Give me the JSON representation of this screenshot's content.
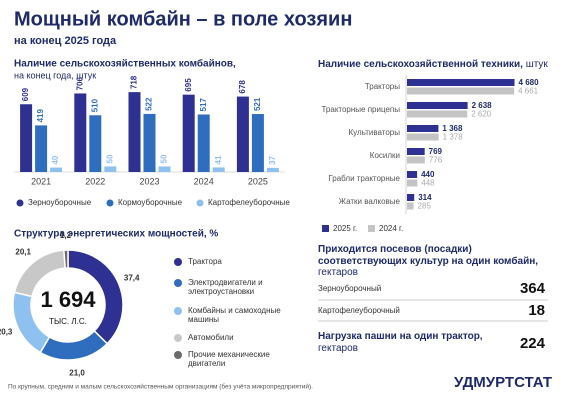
{
  "header": {
    "title": "Мощный комбайн – в поле хозяин",
    "subtitle": "на конец 2025 года"
  },
  "chart_data": [
    {
      "type": "bar",
      "title": "Наличие сельскохозяйственных комбайнов,",
      "subtitle": "на конец года, штук",
      "categories": [
        "2021",
        "2022",
        "2023",
        "2024",
        "2025"
      ],
      "series": [
        {
          "name": "Зерноуборочные",
          "color": "#2e3192",
          "values": [
            609,
            706,
            718,
            695,
            678
          ]
        },
        {
          "name": "Кормоуборочные",
          "color": "#2f6dbf",
          "values": [
            419,
            510,
            522,
            517,
            521
          ]
        },
        {
          "name": "Картофелеуборочные",
          "color": "#8fc1f0",
          "values": [
            40,
            50,
            50,
            41,
            37
          ]
        }
      ],
      "ylim": [
        0,
        800
      ],
      "legend": "bottom"
    },
    {
      "type": "hbar",
      "title": "Наличие сельскохозяйственной техники,",
      "unit": "штук",
      "categories": [
        "Тракторы",
        "Тракторные прицепы",
        "Культиваторы",
        "Косилки",
        "Грабли тракторные",
        "Жатки валковые"
      ],
      "series": [
        {
          "name": "2025 г.",
          "color": "#2e3192",
          "values": [
            4680,
            2638,
            1368,
            769,
            440,
            314
          ],
          "value_labels": [
            "4 680",
            "2 638",
            "1 368",
            "769",
            "440",
            "314"
          ]
        },
        {
          "name": "2024 г.",
          "color": "#c4c4c4",
          "values": [
            4661,
            2620,
            1378,
            776,
            448,
            285
          ],
          "value_labels": [
            "4 661",
            "2 620",
            "1 378",
            "776",
            "448",
            "285"
          ]
        }
      ],
      "xlim": [
        0,
        4700
      ],
      "legend": "bottom"
    },
    {
      "type": "donut",
      "title": "Структура энергетических мощностей, %",
      "categories": [
        "Трактора",
        "Электродвигатели и электроустановки",
        "Комбайны и самоходные машины",
        "Автомобили",
        "Прочие механические двигатели"
      ],
      "values": [
        37.4,
        21.0,
        20.3,
        20.1,
        1.2
      ],
      "value_labels": [
        "37,4",
        "21,0",
        "20,3",
        "20,1",
        "1,2"
      ],
      "colors": [
        "#2e3192",
        "#2f6dbf",
        "#8fc1f0",
        "#c8c8c8",
        "#6b6b6b"
      ],
      "total": 1694,
      "total_label": "1 694",
      "total_unit": "ТЫС. Л.С.",
      "legend": "right"
    }
  ],
  "ratios": {
    "title": "Приходится посевов (посадки) соответствующих культур на один комбайн,",
    "unit": "гектаров",
    "rows": [
      [
        "Зерноуборочный",
        364
      ],
      [
        "Картофелеуборочный",
        18
      ]
    ]
  },
  "tractor_load": {
    "title": "Нагрузка пашни на один трактор,",
    "unit": "гектаров",
    "value": 224
  },
  "footer": "По крупным, средним и малым сельскохозяйственным организациям (без учёта микропредприятий).",
  "logo": "УДМУРТСТАТ"
}
